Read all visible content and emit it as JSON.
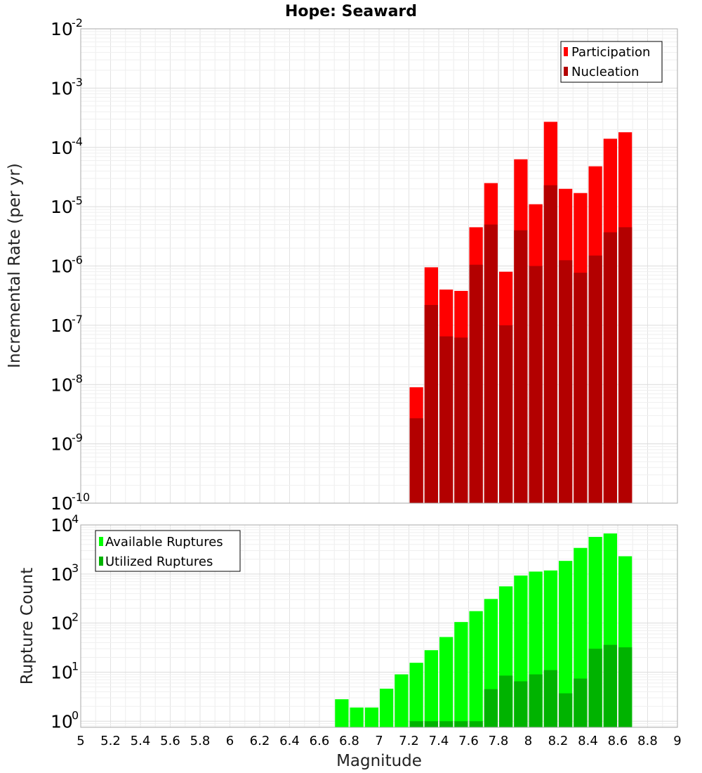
{
  "chart_data": [
    {
      "type": "bar",
      "title": "Hope: Seaward",
      "xlabel": "Magnitude",
      "ylabel": "Incremental Rate (per yr)",
      "yscale": "log",
      "ylim": [
        1e-10,
        0.01
      ],
      "xlim": [
        5,
        9
      ],
      "legend_position": "top-right",
      "x": [
        7.25,
        7.35,
        7.45,
        7.55,
        7.65,
        7.75,
        7.85,
        7.95,
        8.05,
        8.15,
        8.25,
        8.35,
        8.45,
        8.55,
        8.65
      ],
      "series": [
        {
          "name": "Participation",
          "color": "#ff0000",
          "values": [
            9e-09,
            9.5e-07,
            4e-07,
            3.8e-07,
            4.5e-06,
            2.5e-05,
            8e-07,
            6.3e-05,
            1.1e-05,
            0.00027,
            2e-05,
            1.7e-05,
            4.8e-05,
            0.00014,
            0.00018
          ]
        },
        {
          "name": "Nucleation",
          "color": "#b30000",
          "values": [
            2.7e-09,
            2.2e-07,
            6.5e-08,
            6.2e-08,
            1.05e-06,
            5e-06,
            1e-07,
            4e-06,
            1e-06,
            2.3e-05,
            1.25e-06,
            7.7e-07,
            1.5e-06,
            3.7e-06,
            4.5e-06
          ]
        }
      ]
    },
    {
      "type": "bar",
      "xlabel": "Magnitude",
      "ylabel": "Rupture Count",
      "yscale": "log",
      "ylim": [
        0.75,
        10000
      ],
      "xlim": [
        5,
        9
      ],
      "legend_position": "top-left",
      "x": [
        6.75,
        6.85,
        6.95,
        7.05,
        7.15,
        7.25,
        7.35,
        7.45,
        7.55,
        7.65,
        7.75,
        7.85,
        7.95,
        8.05,
        8.15,
        8.25,
        8.35,
        8.45,
        8.55,
        8.65
      ],
      "series": [
        {
          "name": "Available Ruptures",
          "color": "#00ff00",
          "values": [
            2.8,
            1.9,
            1.9,
            4.6,
            9,
            15.5,
            28,
            52,
            105,
            175,
            310,
            560,
            930,
            1120,
            1180,
            1850,
            3400,
            5700,
            6700,
            2300
          ]
        },
        {
          "name": "Utilized Ruptures",
          "color": "#00b300",
          "values": [
            0,
            0,
            0,
            0,
            0,
            1,
            1,
            1,
            1,
            1,
            4.5,
            8.5,
            6.5,
            9,
            11,
            3.7,
            7.4,
            30,
            36,
            32
          ]
        }
      ]
    }
  ],
  "x_ticks": [
    "5",
    "5.2",
    "5.4",
    "5.6",
    "5.8",
    "6",
    "6.2",
    "6.4",
    "6.6",
    "6.8",
    "7",
    "7.2",
    "7.4",
    "7.6",
    "7.8",
    "8",
    "8.2",
    "8.4",
    "8.6",
    "8.8",
    "9"
  ],
  "top_y_ticks": [
    "-10",
    "-9",
    "-8",
    "-7",
    "-6",
    "-5",
    "-4",
    "-3",
    "-2"
  ],
  "bottom_y_ticks": [
    "0",
    "1",
    "2",
    "3",
    "4"
  ],
  "y_tick_base": "10"
}
